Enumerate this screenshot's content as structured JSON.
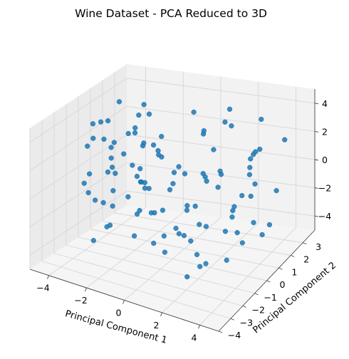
{
  "chart_data": {
    "type": "scatter",
    "projection": "3d",
    "title": "Wine Dataset - PCA Reduced to 3D",
    "xlabel": "Principal Component 1",
    "ylabel": "Principal Component 2",
    "zlabel": "",
    "xlim": [
      -5,
      5
    ],
    "ylim": [
      -4,
      4
    ],
    "zlim": [
      -5,
      5
    ],
    "xticks": [
      "−4",
      "−2",
      "0",
      "2",
      "4"
    ],
    "yticks": [
      "−4",
      "−3",
      "−2",
      "−1",
      "0",
      "1",
      "2",
      "3"
    ],
    "zticks": [
      "−4",
      "−2",
      "0",
      "2",
      "4"
    ],
    "grid": true,
    "legend": "none",
    "marker_color": "#1f77b4",
    "pane_colors": {
      "left": "#ebebeb",
      "back": "#f2f2f2",
      "floor": "#f5f5f5"
    },
    "series": [
      {
        "points": [
          [
            -3.2,
            -1.6,
            4.6
          ],
          [
            -3.6,
            1.2,
            4.3
          ],
          [
            -3.3,
            -0.2,
            3.9
          ],
          [
            -2.8,
            2.0,
            3.8
          ],
          [
            -2.2,
            1.5,
            3.6
          ],
          [
            -4.0,
            0.3,
            3.3
          ],
          [
            -3.0,
            -1.0,
            3.2
          ],
          [
            -2.5,
            0.8,
            3.0
          ],
          [
            -3.7,
            -0.8,
            2.9
          ],
          [
            -2.1,
            -1.8,
            2.7
          ],
          [
            -3.4,
            2.5,
            2.6
          ],
          [
            -2.7,
            1.1,
            2.4
          ],
          [
            -3.1,
            0.0,
            2.3
          ],
          [
            -1.9,
            0.5,
            2.1
          ],
          [
            -4.2,
            -0.5,
            2.0
          ],
          [
            -2.4,
            -0.3,
            1.9
          ],
          [
            -3.5,
            1.8,
            1.7
          ],
          [
            -2.0,
            2.2,
            1.6
          ],
          [
            -3.0,
            -2.2,
            1.5
          ],
          [
            -1.6,
            1.3,
            1.3
          ],
          [
            -2.6,
            -1.3,
            1.2
          ],
          [
            -3.9,
            1.0,
            1.1
          ],
          [
            -2.2,
            0.1,
            0.9
          ],
          [
            -1.5,
            -0.6,
            0.8
          ],
          [
            -3.2,
            2.6,
            0.6
          ],
          [
            -2.8,
            -2.6,
            0.5
          ],
          [
            -1.8,
            1.9,
            0.4
          ],
          [
            -3.6,
            -1.7,
            0.3
          ],
          [
            -2.3,
            0.9,
            0.1
          ],
          [
            -1.4,
            -1.5,
            0.0
          ],
          [
            -3.3,
            0.4,
            -0.2
          ],
          [
            -2.6,
            2.9,
            -0.3
          ],
          [
            -1.9,
            -2.0,
            -0.5
          ],
          [
            -4.1,
            1.4,
            -0.6
          ],
          [
            -2.9,
            -0.4,
            -0.8
          ],
          [
            -1.7,
            0.7,
            -1.0
          ],
          [
            -3.4,
            -1.1,
            -1.2
          ],
          [
            -2.5,
            1.6,
            -1.4
          ],
          [
            -1.3,
            -0.9,
            -1.6
          ],
          [
            -3.0,
            2.1,
            -1.8
          ],
          [
            -2.1,
            -1.9,
            -2.0
          ],
          [
            -3.8,
            0.2,
            -2.3
          ],
          [
            -2.4,
            -2.8,
            -2.6
          ],
          [
            -1.6,
            1.0,
            -2.9
          ],
          [
            -3.1,
            -0.6,
            -3.3
          ],
          [
            -2.0,
            2.3,
            -3.7
          ],
          [
            -2.8,
            1.2,
            -5.0
          ],
          [
            -1.2,
            0.3,
            2.5
          ],
          [
            -0.8,
            -1.4,
            1.2
          ],
          [
            -0.5,
            1.8,
            -0.4
          ],
          [
            -1.0,
            -0.2,
            -1.9
          ],
          [
            -0.3,
            0.6,
            0.6
          ],
          [
            1.5,
            2.4,
            4.2
          ],
          [
            2.1,
            1.6,
            3.8
          ],
          [
            0.8,
            3.1,
            2.6
          ],
          [
            2.9,
            -0.5,
            2.3
          ],
          [
            1.2,
            -2.1,
            1.9
          ],
          [
            3.4,
            1.1,
            1.6
          ],
          [
            0.6,
            -0.9,
            1.2
          ],
          [
            2.5,
            2.8,
            0.9
          ],
          [
            1.8,
            -1.6,
            0.6
          ],
          [
            3.9,
            0.4,
            0.3
          ],
          [
            0.9,
            1.3,
            0.1
          ],
          [
            2.2,
            -2.9,
            -0.2
          ],
          [
            3.1,
            2.0,
            -0.4
          ],
          [
            1.4,
            -0.3,
            -0.6
          ],
          [
            4.2,
            -1.2,
            -0.8
          ],
          [
            0.4,
            2.2,
            -1.0
          ],
          [
            2.7,
            0.9,
            -1.2
          ],
          [
            1.7,
            -3.3,
            -1.4
          ],
          [
            3.6,
            3.0,
            -1.6
          ],
          [
            0.7,
            -1.8,
            -1.8
          ],
          [
            2.3,
            1.4,
            -2.0
          ],
          [
            3.3,
            -2.4,
            -2.3
          ],
          [
            1.1,
            0.5,
            -2.6
          ],
          [
            4.0,
            1.8,
            -2.9
          ],
          [
            2.0,
            -1.1,
            -3.2
          ],
          [
            1.5,
            2.6,
            -3.6
          ],
          [
            3.0,
            -0.2,
            -4.0
          ],
          [
            2.6,
            3.3,
            3.0
          ],
          [
            0.2,
            -2.6,
            2.0
          ],
          [
            3.7,
            -3.0,
            1.0
          ],
          [
            1.9,
            3.5,
            -0.1
          ],
          [
            4.3,
            0.0,
            -1.1
          ],
          [
            0.5,
            -0.5,
            -2.3
          ],
          [
            2.8,
            2.5,
            1.4
          ],
          [
            3.5,
            -1.7,
            2.6
          ],
          [
            1.0,
            1.0,
            3.4
          ],
          [
            4.4,
            -2.5,
            0.5
          ],
          [
            2.4,
            0.2,
            1.8
          ],
          [
            1.3,
            -3.6,
            -0.7
          ],
          [
            3.8,
            1.5,
            -3.4
          ],
          [
            0.1,
            0.8,
            -3.9
          ],
          [
            2.9,
            -2.0,
            3.6
          ],
          [
            1.6,
            0.1,
            4.5
          ],
          [
            4.1,
            2.9,
            2.2
          ],
          [
            -0.6,
            2.7,
            3.3
          ],
          [
            0.3,
            -3.2,
            0.9
          ],
          [
            2.2,
            3.8,
            0.4
          ],
          [
            3.2,
            -3.8,
            -2.1
          ],
          [
            -0.2,
            1.5,
            -2.7
          ],
          [
            1.9,
            -0.7,
            -4.4
          ],
          [
            4.6,
            -0.8,
            3.1
          ],
          [
            0.9,
            2.0,
            1.5
          ],
          [
            3.3,
            0.6,
            0.0
          ],
          [
            2.5,
            -2.4,
            -1.0
          ],
          [
            1.1,
            -1.2,
            2.8
          ],
          [
            3.9,
            -0.3,
            -2.4
          ]
        ]
      }
    ]
  }
}
